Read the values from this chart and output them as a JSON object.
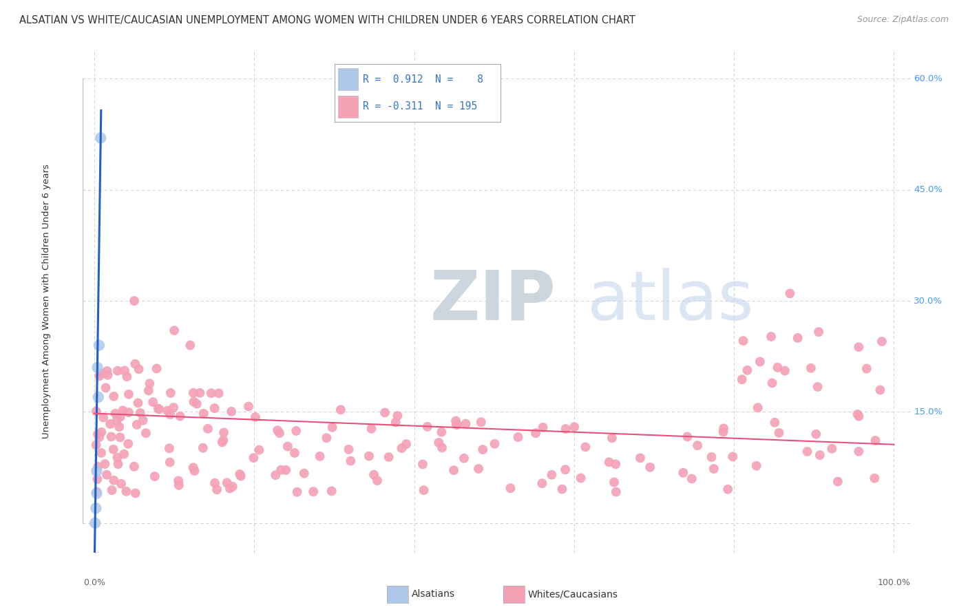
{
  "title": "ALSATIAN VS WHITE/CAUCASIAN UNEMPLOYMENT AMONG WOMEN WITH CHILDREN UNDER 6 YEARS CORRELATION CHART",
  "source": "Source: ZipAtlas.com",
  "ylabel": "Unemployment Among Women with Children Under 6 years",
  "alsatian_R": 0.912,
  "alsatian_N": 8,
  "white_R": -0.311,
  "white_N": 195,
  "alsatian_color": "#adc8e8",
  "white_color": "#f4a0b5",
  "alsatian_line_color": "#2060c8",
  "white_line_color": "#e8507a",
  "legend_label_alsatian": "Alsatians",
  "legend_label_white": "Whites/Caucasians",
  "watermark_zip": "ZIP",
  "watermark_atlas": "atlas",
  "watermark_zip_color": "#d0d8e4",
  "watermark_atlas_color": "#c8d8f0",
  "background_color": "#ffffff",
  "grid_color": "#cccccc",
  "title_color": "#333333",
  "right_axis_color": "#4499ff",
  "xlim": [
    0.0,
    1.0
  ],
  "ylim": [
    0.0,
    0.6
  ],
  "right_yticks": [
    0.15,
    0.3,
    0.45,
    0.6
  ],
  "right_yticklabels": [
    "15.0%",
    "30.0%",
    "45.0%",
    "60.0%"
  ],
  "xtick_labels": [
    "0.0%",
    "100.0%"
  ],
  "als_x": [
    0.001,
    0.002,
    0.003,
    0.003,
    0.004,
    0.005,
    0.006,
    0.008
  ],
  "als_y": [
    0.0,
    0.02,
    0.04,
    0.07,
    0.21,
    0.17,
    0.24,
    0.52
  ],
  "white_slope": -0.042,
  "white_intercept": 0.148
}
